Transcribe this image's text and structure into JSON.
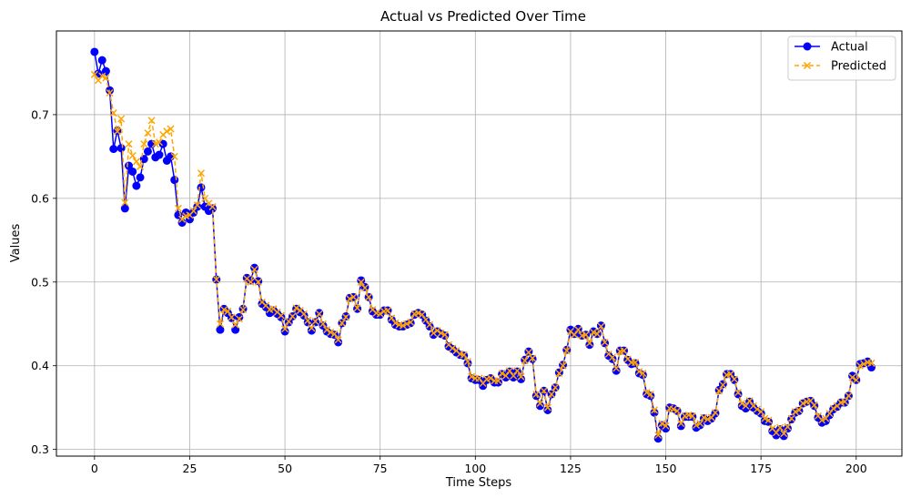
{
  "chart_data": {
    "type": "line",
    "title": "Actual vs Predicted Over Time",
    "xlabel": "Time Steps",
    "ylabel": "Values",
    "xlim": [
      -10,
      212
    ],
    "ylim": [
      0.292,
      0.8
    ],
    "xticks": [
      0,
      25,
      50,
      75,
      100,
      125,
      150,
      175,
      200
    ],
    "yticks": [
      0.3,
      0.4,
      0.5,
      0.6,
      0.7
    ],
    "ytick_labels": [
      "0.3",
      "0.4",
      "0.5",
      "0.6",
      "0.7"
    ],
    "grid": true,
    "legend_position": "top-right",
    "series": [
      {
        "name": "Actual",
        "color": "#0000ff",
        "marker": "circle",
        "linestyle": "solid",
        "values": [
          0.775,
          0.749,
          0.765,
          0.752,
          0.729,
          0.659,
          0.681,
          0.66,
          0.588,
          0.639,
          0.632,
          0.615,
          0.625,
          0.647,
          0.656,
          0.665,
          0.649,
          0.652,
          0.665,
          0.645,
          0.65,
          0.622,
          0.58,
          0.571,
          0.583,
          0.575,
          0.583,
          0.59,
          0.613,
          0.59,
          0.585,
          0.588,
          0.503,
          0.443,
          0.468,
          0.463,
          0.457,
          0.443,
          0.458,
          0.468,
          0.505,
          0.502,
          0.517,
          0.501,
          0.474,
          0.47,
          0.463,
          0.466,
          0.462,
          0.458,
          0.441,
          0.452,
          0.459,
          0.468,
          0.464,
          0.46,
          0.452,
          0.442,
          0.452,
          0.463,
          0.448,
          0.441,
          0.438,
          0.437,
          0.428,
          0.451,
          0.459,
          0.481,
          0.482,
          0.468,
          0.502,
          0.494,
          0.482,
          0.465,
          0.461,
          0.461,
          0.466,
          0.466,
          0.455,
          0.449,
          0.447,
          0.447,
          0.449,
          0.451,
          0.461,
          0.463,
          0.461,
          0.454,
          0.447,
          0.437,
          0.441,
          0.438,
          0.436,
          0.423,
          0.42,
          0.416,
          0.413,
          0.412,
          0.403,
          0.385,
          0.383,
          0.383,
          0.376,
          0.383,
          0.385,
          0.38,
          0.38,
          0.39,
          0.386,
          0.393,
          0.386,
          0.393,
          0.384,
          0.407,
          0.417,
          0.408,
          0.364,
          0.352,
          0.37,
          0.347,
          0.366,
          0.374,
          0.392,
          0.401,
          0.419,
          0.443,
          0.438,
          0.444,
          0.436,
          0.437,
          0.425,
          0.441,
          0.438,
          0.448,
          0.427,
          0.412,
          0.408,
          0.394,
          0.418,
          0.418,
          0.407,
          0.402,
          0.403,
          0.391,
          0.389,
          0.366,
          0.364,
          0.344,
          0.313,
          0.329,
          0.325,
          0.35,
          0.349,
          0.346,
          0.328,
          0.339,
          0.339,
          0.339,
          0.326,
          0.329,
          0.337,
          0.334,
          0.337,
          0.343,
          0.371,
          0.378,
          0.39,
          0.39,
          0.383,
          0.366,
          0.352,
          0.349,
          0.357,
          0.35,
          0.346,
          0.343,
          0.334,
          0.333,
          0.322,
          0.317,
          0.324,
          0.316,
          0.325,
          0.336,
          0.344,
          0.346,
          0.355,
          0.357,
          0.358,
          0.352,
          0.338,
          0.332,
          0.334,
          0.341,
          0.348,
          0.351,
          0.356,
          0.356,
          0.364,
          0.388,
          0.383,
          0.402,
          0.403,
          0.405,
          0.398
        ]
      },
      {
        "name": "Predicted",
        "color": "#ffa500",
        "marker": "x",
        "linestyle": "dashed",
        "values": [
          0.748,
          0.741,
          0.746,
          0.744,
          0.726,
          0.702,
          0.68,
          0.695,
          0.595,
          0.665,
          0.651,
          0.644,
          0.638,
          0.665,
          0.678,
          0.693,
          0.665,
          0.667,
          0.676,
          0.68,
          0.683,
          0.65,
          0.588,
          0.575,
          0.579,
          0.58,
          0.585,
          0.592,
          0.63,
          0.6,
          0.594,
          0.59,
          0.503,
          0.45,
          0.467,
          0.465,
          0.458,
          0.449,
          0.456,
          0.467,
          0.504,
          0.5,
          0.515,
          0.5,
          0.476,
          0.472,
          0.467,
          0.468,
          0.464,
          0.46,
          0.444,
          0.453,
          0.459,
          0.469,
          0.466,
          0.462,
          0.454,
          0.445,
          0.453,
          0.462,
          0.45,
          0.443,
          0.44,
          0.438,
          0.431,
          0.451,
          0.458,
          0.48,
          0.482,
          0.469,
          0.5,
          0.493,
          0.482,
          0.467,
          0.463,
          0.462,
          0.465,
          0.466,
          0.457,
          0.451,
          0.449,
          0.448,
          0.45,
          0.452,
          0.462,
          0.463,
          0.461,
          0.455,
          0.449,
          0.439,
          0.442,
          0.439,
          0.437,
          0.425,
          0.421,
          0.418,
          0.414,
          0.413,
          0.405,
          0.387,
          0.385,
          0.385,
          0.379,
          0.384,
          0.385,
          0.382,
          0.382,
          0.391,
          0.388,
          0.394,
          0.388,
          0.394,
          0.387,
          0.406,
          0.416,
          0.409,
          0.366,
          0.355,
          0.37,
          0.35,
          0.366,
          0.374,
          0.391,
          0.4,
          0.418,
          0.441,
          0.437,
          0.443,
          0.436,
          0.437,
          0.427,
          0.44,
          0.438,
          0.447,
          0.428,
          0.414,
          0.41,
          0.397,
          0.417,
          0.418,
          0.408,
          0.404,
          0.404,
          0.393,
          0.391,
          0.368,
          0.366,
          0.347,
          0.317,
          0.331,
          0.328,
          0.349,
          0.348,
          0.346,
          0.331,
          0.34,
          0.341,
          0.34,
          0.329,
          0.331,
          0.338,
          0.336,
          0.338,
          0.344,
          0.37,
          0.377,
          0.389,
          0.39,
          0.384,
          0.368,
          0.355,
          0.352,
          0.358,
          0.352,
          0.348,
          0.345,
          0.337,
          0.335,
          0.325,
          0.32,
          0.326,
          0.319,
          0.327,
          0.337,
          0.345,
          0.347,
          0.355,
          0.357,
          0.358,
          0.353,
          0.34,
          0.335,
          0.337,
          0.343,
          0.349,
          0.352,
          0.356,
          0.357,
          0.364,
          0.386,
          0.383,
          0.4,
          0.402,
          0.404,
          0.403
        ]
      }
    ]
  }
}
